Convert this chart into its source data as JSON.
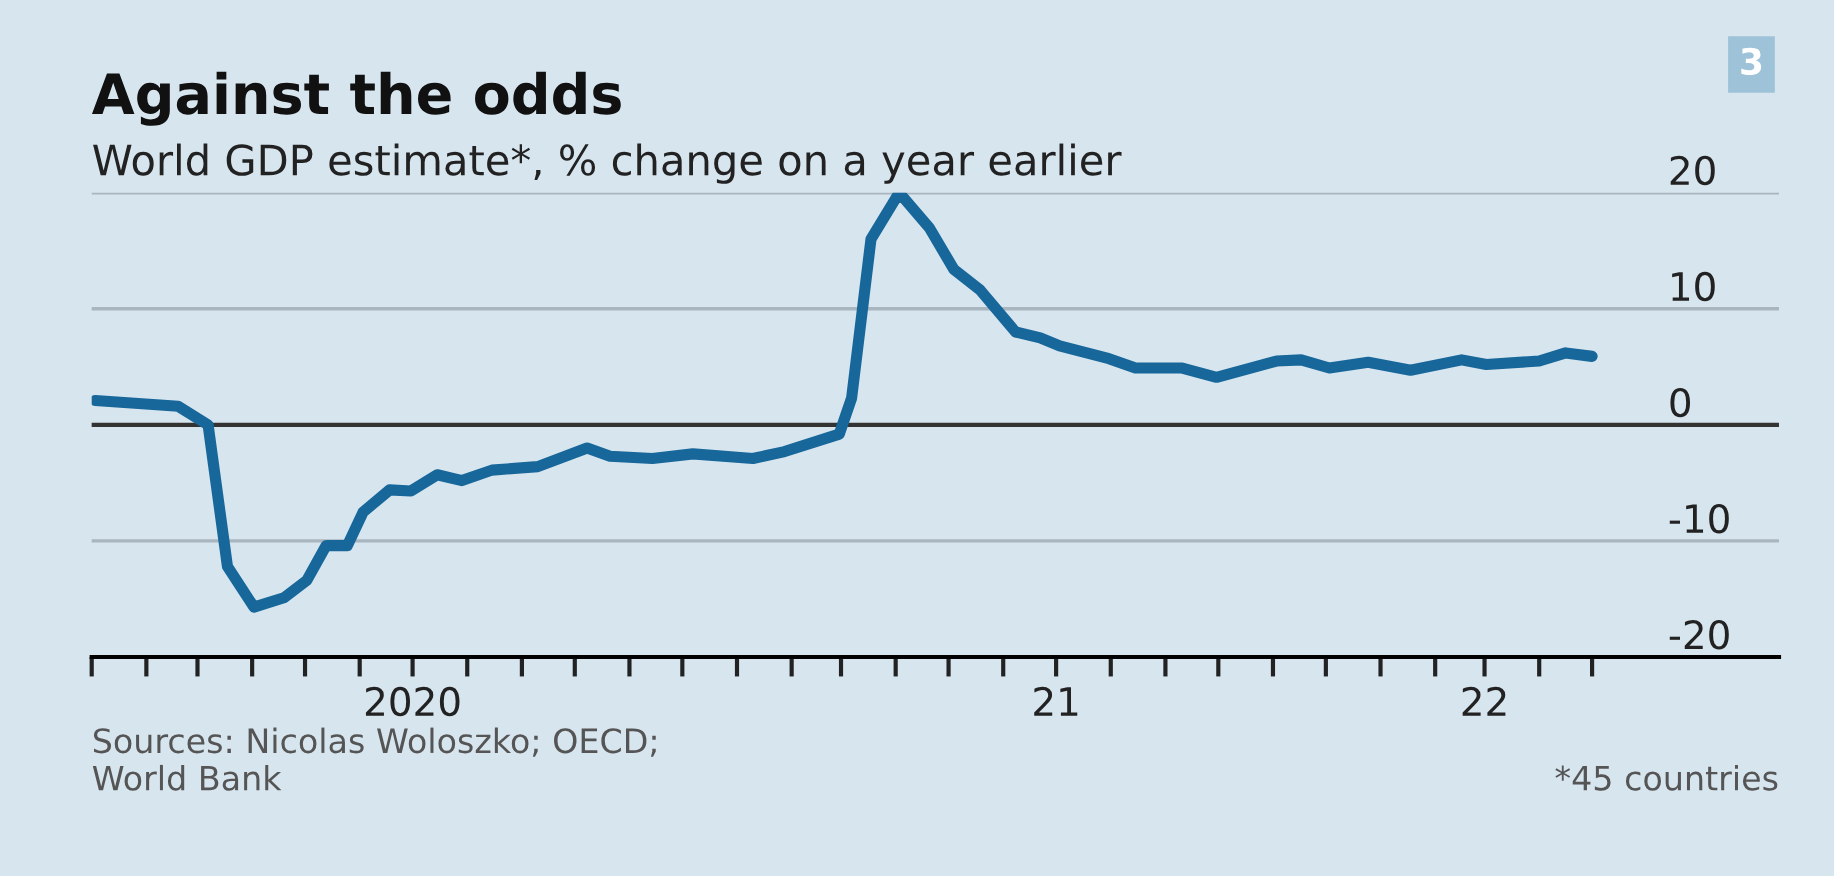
{
  "chart_data": {
    "type": "line",
    "title": "Against the odds",
    "subtitle": "World GDP estimate*, % change on a year earlier",
    "annotations": [
      "3",
      "Sources: Nicolas Woloszko; OECD;\nWorld Bank",
      "*45 countries"
    ],
    "x": [
      "2020-01-03",
      "2020-02-19",
      "2020-03-07",
      "2020-03-18",
      "2020-04-02",
      "2020-04-19",
      "2020-05-02",
      "2020-05-13",
      "2020-05-25",
      "2020-06-03",
      "2020-06-18",
      "2020-06-30",
      "2020-07-15",
      "2020-07-29",
      "2020-08-15",
      "2020-09-10",
      "2020-10-08",
      "2020-10-21",
      "2020-11-14",
      "2020-12-07",
      "2021-01-10",
      "2021-01-28",
      "2021-02-28",
      "2021-03-07",
      "2021-03-18",
      "2021-04-03",
      "2021-04-20",
      "2021-05-04",
      "2021-05-19",
      "2021-06-08",
      "2021-06-22",
      "2021-07-03",
      "2021-07-31",
      "2021-08-15",
      "2021-09-10",
      "2021-09-30",
      "2021-11-03",
      "2021-11-17",
      "2021-12-03",
      "2021-12-25",
      "2022-01-18",
      "2022-02-16",
      "2022-03-02",
      "2022-04-01",
      "2022-04-16",
      "2022-05-01"
    ],
    "series": [
      {
        "color": "#17679a",
        "values": [
          2.1,
          1.6,
          0,
          -12.2,
          -15.7,
          -14.9,
          -13.4,
          -10.4,
          -10.4,
          -7.5,
          -5.6,
          -5.7,
          -4.3,
          -4.8,
          -3.9,
          -3.6,
          -2.0,
          -2.7,
          -2.9,
          -2.5,
          -2.9,
          -2.3,
          -0.8,
          2.3,
          16,
          20,
          17,
          13.4,
          11.6,
          8.0,
          7.5,
          6.8,
          5.7,
          4.9,
          4.9,
          4.1,
          5.5,
          5.6,
          4.9,
          5.4,
          4.7,
          5.6,
          5.2,
          5.5,
          6.2,
          5.9
        ]
      }
    ],
    "xlim": [
      "2020-01-01",
      "2022-08-15"
    ],
    "xticks": [
      {
        "value": "2020-01-01",
        "label": null
      },
      {
        "value": "2020-02-01",
        "label": null
      },
      {
        "value": "2020-03-01",
        "label": null
      },
      {
        "value": "2020-04-01",
        "label": null
      },
      {
        "value": "2020-05-01",
        "label": null
      },
      {
        "value": "2020-06-01",
        "label": null
      },
      {
        "value": "2020-07-01",
        "label": "2020"
      },
      {
        "value": "2020-08-01",
        "label": null
      },
      {
        "value": "2020-09-01",
        "label": null
      },
      {
        "value": "2020-10-01",
        "label": null
      },
      {
        "value": "2020-11-01",
        "label": null
      },
      {
        "value": "2020-12-01",
        "label": null
      },
      {
        "value": "2021-01-01",
        "label": null
      },
      {
        "value": "2021-02-01",
        "label": null
      },
      {
        "value": "2021-03-01",
        "label": null
      },
      {
        "value": "2021-04-01",
        "label": null
      },
      {
        "value": "2021-05-01",
        "label": null
      },
      {
        "value": "2021-06-01",
        "label": null
      },
      {
        "value": "2021-07-01",
        "label": "21"
      },
      {
        "value": "2021-08-01",
        "label": null
      },
      {
        "value": "2021-09-01",
        "label": null
      },
      {
        "value": "2021-10-01",
        "label": null
      },
      {
        "value": "2021-11-01",
        "label": null
      },
      {
        "value": "2021-12-01",
        "label": null
      },
      {
        "value": "2022-01-01",
        "label": null
      },
      {
        "value": "2022-02-01",
        "label": null
      },
      {
        "value": "2022-03-01",
        "label": "22"
      },
      {
        "value": "2022-04-01",
        "label": null
      },
      {
        "value": "2022-05-01",
        "label": null
      }
    ],
    "ylim": [
      -20,
      20
    ],
    "yticks": [
      -20,
      -10,
      0,
      10,
      20
    ],
    "grid": "y",
    "ref_lines": [
      {
        "axis": "y",
        "value": 0,
        "color": "#333333"
      }
    ],
    "line_style": "solid",
    "marker": "none",
    "legend": false
  }
}
